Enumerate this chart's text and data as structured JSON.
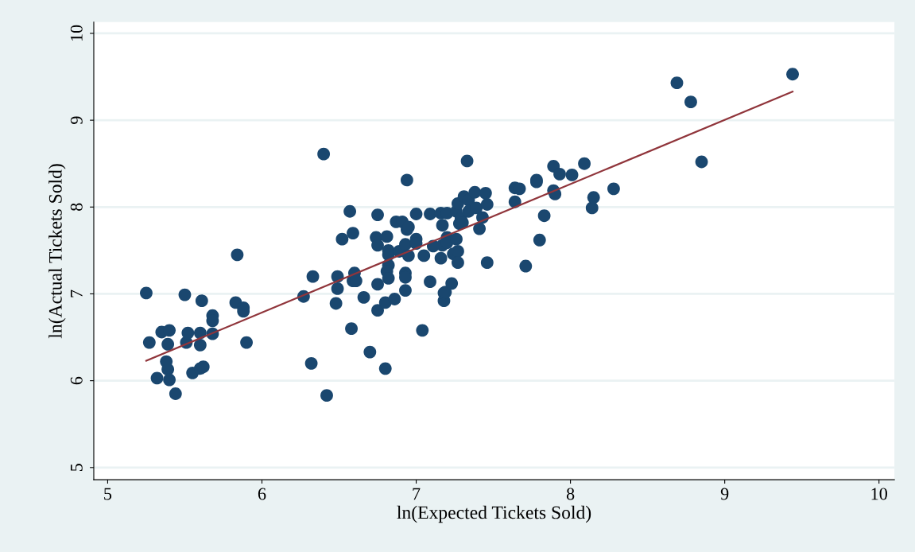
{
  "chart_data": {
    "type": "scatter",
    "xlabel": "ln(Expected Tickets Sold)",
    "ylabel": "ln(Actual Tickets Sold)",
    "xlim": [
      4.91,
      10.1
    ],
    "ylim": [
      4.86,
      10.13
    ],
    "xticks": [
      5,
      6,
      7,
      8,
      9,
      10
    ],
    "yticks": [
      5,
      6,
      7,
      8,
      9,
      10
    ],
    "grid": "y",
    "legend": false,
    "marker": "circle",
    "series": [
      {
        "color": "#1a476f",
        "x": [
          5.25,
          5.27,
          5.32,
          5.35,
          5.38,
          5.39,
          5.4,
          5.39,
          5.4,
          5.44,
          5.5,
          5.51,
          5.52,
          5.55,
          5.6,
          5.6,
          5.61,
          5.6,
          5.62,
          5.68,
          5.68,
          5.68,
          5.83,
          5.84,
          5.88,
          5.88,
          5.9,
          6.27,
          6.32,
          6.33,
          6.4,
          6.42,
          6.48,
          6.49,
          6.49,
          6.52,
          6.57,
          6.58,
          6.59,
          6.59,
          6.6,
          6.61,
          6.66,
          6.7,
          6.75,
          6.74,
          6.75,
          6.75,
          6.75,
          6.8,
          6.8,
          6.81,
          6.82,
          6.82,
          6.82,
          6.81,
          6.82,
          6.87,
          6.86,
          6.91,
          6.89,
          6.93,
          6.94,
          6.93,
          6.93,
          6.93,
          6.94,
          6.95,
          6.95,
          7.0,
          7.0,
          7.0,
          7.04,
          7.05,
          7.09,
          7.09,
          7.11,
          7.16,
          7.16,
          7.17,
          7.17,
          7.18,
          7.18,
          7.19,
          7.2,
          7.2,
          7.2,
          7.23,
          7.24,
          7.26,
          7.26,
          7.27,
          7.27,
          7.27,
          7.28,
          7.29,
          7.3,
          7.31,
          7.33,
          7.34,
          7.34,
          7.38,
          7.39,
          7.41,
          7.43,
          7.45,
          7.46,
          7.46,
          7.64,
          7.64,
          7.67,
          7.71,
          7.78,
          7.78,
          7.8,
          7.83,
          7.89,
          7.89,
          7.9,
          7.93,
          8.01,
          8.09,
          8.14,
          8.15,
          8.28,
          8.69,
          8.78,
          8.85,
          9.44
        ],
        "values": [
          7.01,
          6.44,
          6.03,
          6.56,
          6.22,
          6.42,
          6.58,
          6.13,
          6.01,
          5.85,
          6.99,
          6.44,
          6.55,
          6.09,
          6.55,
          6.41,
          6.92,
          6.14,
          6.16,
          6.75,
          6.54,
          6.69,
          6.9,
          7.45,
          6.84,
          6.8,
          6.44,
          6.97,
          6.2,
          7.2,
          8.61,
          5.83,
          6.89,
          7.2,
          7.06,
          7.63,
          7.95,
          6.6,
          7.7,
          7.15,
          7.24,
          7.15,
          6.96,
          6.33,
          7.91,
          7.65,
          7.56,
          7.11,
          6.81,
          6.9,
          6.14,
          7.66,
          7.5,
          7.45,
          7.33,
          7.26,
          7.18,
          7.83,
          6.94,
          7.83,
          7.49,
          7.57,
          8.31,
          7.24,
          7.19,
          7.04,
          7.74,
          7.77,
          7.44,
          7.92,
          7.63,
          7.58,
          6.58,
          7.44,
          7.92,
          7.14,
          7.55,
          7.93,
          7.41,
          7.56,
          7.79,
          6.92,
          7.01,
          7.02,
          7.93,
          7.65,
          7.59,
          7.12,
          7.46,
          7.95,
          7.63,
          7.49,
          7.36,
          8.04,
          7.81,
          7.87,
          7.82,
          8.12,
          8.53,
          8.08,
          7.95,
          8.17,
          7.99,
          7.75,
          7.88,
          8.16,
          8.03,
          7.36,
          8.06,
          8.22,
          8.21,
          7.32,
          8.31,
          8.29,
          7.62,
          7.9,
          8.47,
          8.19,
          8.15,
          8.38,
          8.37,
          8.5,
          7.99,
          8.11,
          8.21,
          9.43,
          9.21,
          8.52,
          9.53
        ]
      },
      {
        "type": "line",
        "color": "#90353b",
        "marker": "none",
        "x": [
          5.25,
          9.44
        ],
        "values": [
          6.23,
          9.33
        ]
      }
    ]
  }
}
